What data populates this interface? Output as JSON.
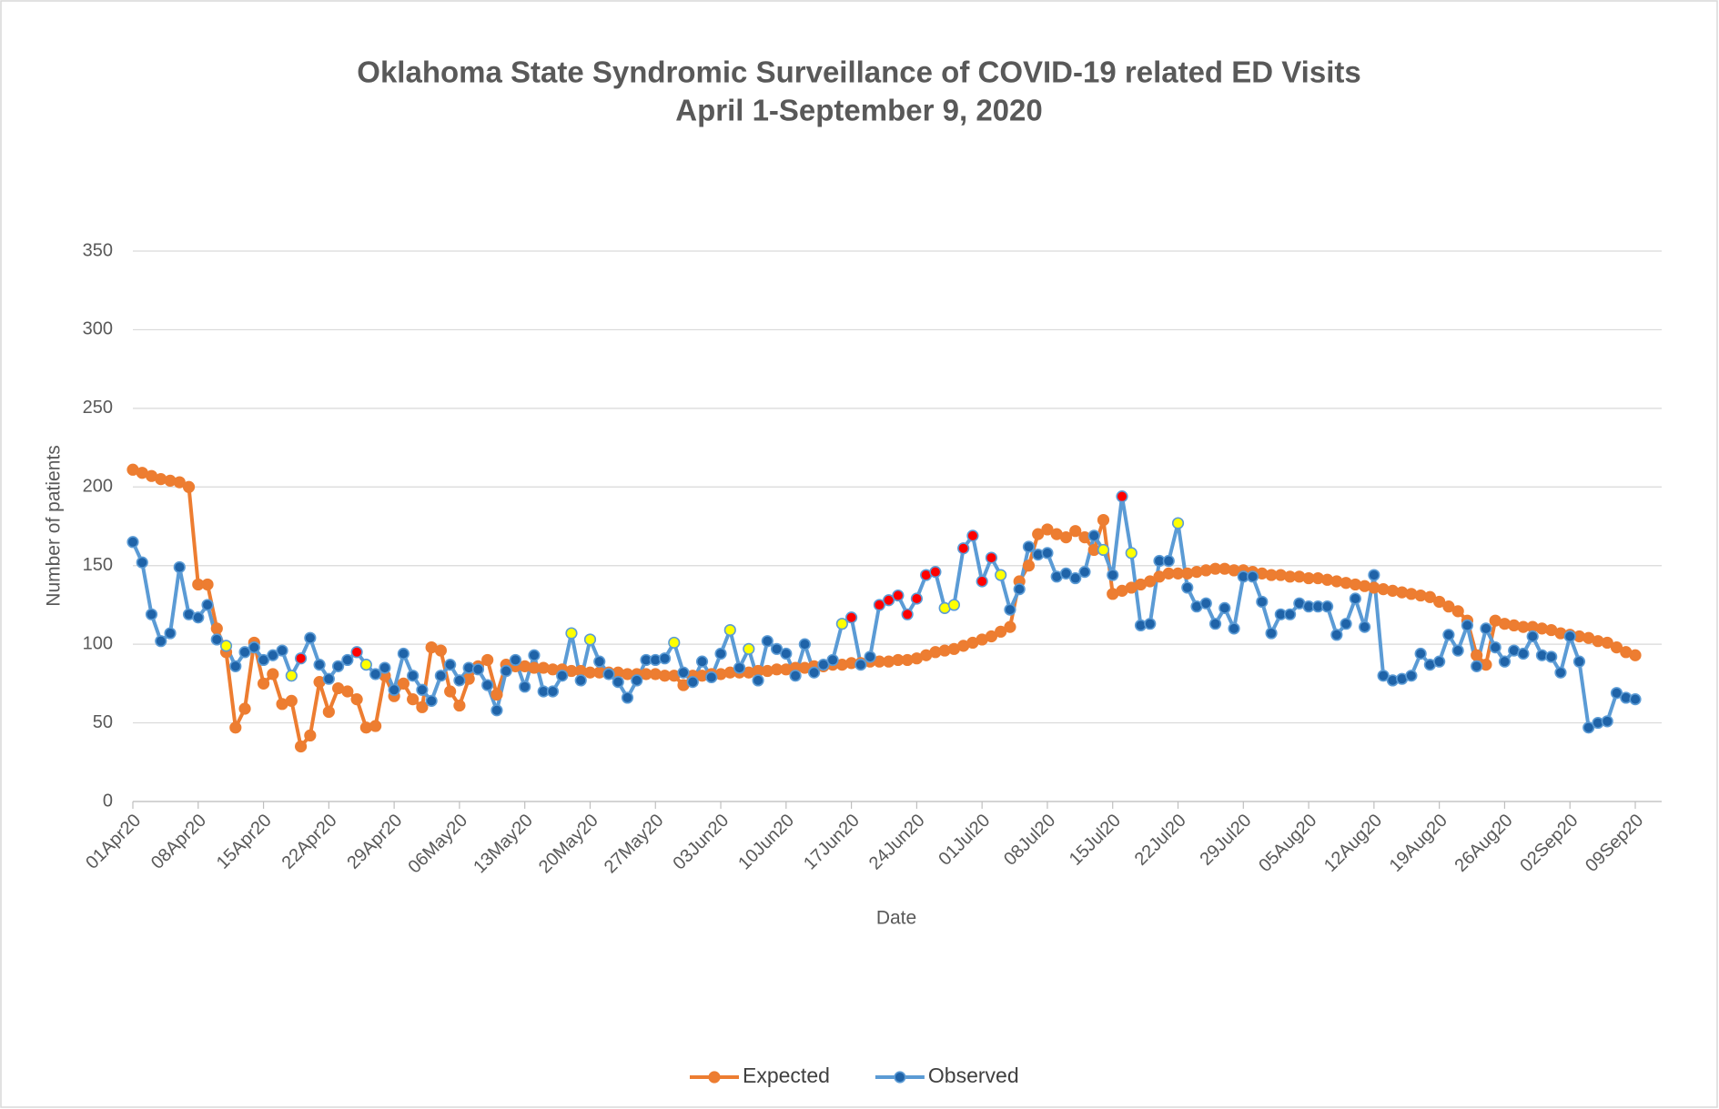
{
  "chart_data": {
    "type": "line",
    "title": "Oklahoma State Syndromic Surveillance of COVID-19 related ED Visits",
    "subtitle": "April 1-September 9, 2020",
    "x_label": "Date",
    "y_label": "Number of patients",
    "ylim": [
      0,
      350
    ],
    "yticks": [
      0,
      50,
      100,
      150,
      200,
      250,
      300,
      350
    ],
    "grid": true,
    "legend": "bottom",
    "categories": [
      "01Apr20",
      null,
      null,
      null,
      null,
      null,
      null,
      "08Apr20",
      null,
      null,
      null,
      null,
      null,
      null,
      "15Apr20",
      null,
      null,
      null,
      null,
      null,
      null,
      "22Apr20",
      null,
      null,
      null,
      null,
      null,
      null,
      "29Apr20",
      null,
      null,
      null,
      null,
      null,
      null,
      "06May20",
      null,
      null,
      null,
      null,
      null,
      null,
      "13May20",
      null,
      null,
      null,
      null,
      null,
      null,
      "20May20",
      null,
      null,
      null,
      null,
      null,
      null,
      "27May20",
      null,
      null,
      null,
      null,
      null,
      null,
      "03Jun20",
      null,
      null,
      null,
      null,
      null,
      null,
      "10Jun20",
      null,
      null,
      null,
      null,
      null,
      null,
      "17Jun20",
      null,
      null,
      null,
      null,
      null,
      null,
      "24Jun20",
      null,
      null,
      null,
      null,
      null,
      null,
      "01Jul20",
      null,
      null,
      null,
      null,
      null,
      null,
      "08Jul20",
      null,
      null,
      null,
      null,
      null,
      null,
      "15Jul20",
      null,
      null,
      null,
      null,
      null,
      null,
      "22Jul20",
      null,
      null,
      null,
      null,
      null,
      null,
      "29Jul20",
      null,
      null,
      null,
      null,
      null,
      null,
      "05Aug20",
      null,
      null,
      null,
      null,
      null,
      null,
      "12Aug20",
      null,
      null,
      null,
      null,
      null,
      null,
      "19Aug20",
      null,
      null,
      null,
      null,
      null,
      null,
      "26Aug20",
      null,
      null,
      null,
      null,
      null,
      null,
      "02Sep20",
      null,
      null,
      null,
      null,
      null,
      null,
      "09Sep20"
    ],
    "series": [
      {
        "name": "Expected",
        "color": "#ed7d31",
        "values": [
          211,
          209,
          207,
          205,
          204,
          203,
          200,
          138,
          138,
          110,
          95,
          47,
          59,
          101,
          75,
          81,
          62,
          64,
          35,
          42,
          76,
          57,
          72,
          70,
          65,
          47,
          48,
          80,
          67,
          75,
          65,
          60,
          98,
          96,
          70,
          61,
          78,
          86,
          90,
          68,
          87,
          86,
          86,
          85,
          85,
          84,
          84,
          83,
          83,
          82,
          82,
          82,
          82,
          81,
          81,
          81,
          81,
          80,
          80,
          74,
          80,
          80,
          81,
          81,
          82,
          82,
          82,
          83,
          83,
          84,
          84,
          85,
          85,
          86,
          86,
          87,
          87,
          88,
          88,
          89,
          89,
          89,
          90,
          90,
          91,
          93,
          95,
          96,
          97,
          99,
          101,
          103,
          105,
          108,
          111,
          140,
          150,
          170,
          173,
          170,
          168,
          172,
          168,
          160,
          179,
          132,
          134,
          136,
          138,
          140,
          143,
          145,
          145,
          145,
          146,
          147,
          148,
          148,
          147,
          147,
          146,
          145,
          144,
          144,
          143,
          143,
          142,
          142,
          141,
          140,
          139,
          138,
          137,
          136,
          135,
          134,
          133,
          132,
          131,
          130,
          127,
          124,
          121,
          115,
          93,
          87,
          115,
          113,
          112,
          111,
          111,
          110,
          109,
          107,
          106,
          105,
          104,
          102,
          101,
          98,
          95,
          93
        ]
      },
      {
        "name": "Observed",
        "color": "#5b9bd5",
        "values": [
          165,
          152,
          119,
          102,
          107,
          149,
          119,
          117,
          125,
          103,
          99,
          86,
          95,
          98,
          90,
          93,
          96,
          80,
          91,
          104,
          87,
          78,
          86,
          90,
          95,
          87,
          81,
          85,
          71,
          94,
          80,
          71,
          64,
          80,
          87,
          77,
          85,
          84,
          74,
          58,
          83,
          90,
          73,
          93,
          70,
          70,
          80,
          107,
          77,
          103,
          89,
          81,
          76,
          66,
          77,
          90,
          90,
          91,
          101,
          82,
          76,
          89,
          79,
          94,
          109,
          85,
          97,
          77,
          102,
          97,
          94,
          80,
          100,
          82,
          87,
          90,
          113,
          117,
          87,
          92,
          125,
          128,
          131,
          119,
          129,
          144,
          146,
          123,
          125,
          161,
          169,
          140,
          155,
          144,
          122,
          135,
          162,
          157,
          158,
          143,
          145,
          142,
          146,
          169,
          160,
          144,
          194,
          158,
          112,
          113,
          153,
          153,
          177,
          136,
          124,
          126,
          113,
          123,
          110,
          143,
          143,
          127,
          107,
          119,
          119,
          126,
          124,
          124,
          124,
          106,
          113,
          129,
          111,
          144,
          80,
          77,
          78,
          80,
          94,
          87,
          89,
          106,
          96,
          112,
          86,
          110,
          98,
          89,
          96,
          94,
          105,
          93,
          92,
          82,
          105,
          89,
          47,
          50,
          51,
          69,
          66,
          65
        ],
        "marker_colors": [
          "#1f63a8",
          "#1f63a8",
          "#1f63a8",
          "#1f63a8",
          "#1f63a8",
          "#1f63a8",
          "#1f63a8",
          "#1f63a8",
          "#1f63a8",
          "#1f63a8",
          "#ffff00",
          "#1f63a8",
          "#1f63a8",
          "#1f63a8",
          "#1f63a8",
          "#1f63a8",
          "#1f63a8",
          "#ffff00",
          "#ff0000",
          "#1f63a8",
          "#1f63a8",
          "#1f63a8",
          "#1f63a8",
          "#1f63a8",
          "#ff0000",
          "#ffff00",
          "#1f63a8",
          "#1f63a8",
          "#1f63a8",
          "#1f63a8",
          "#1f63a8",
          "#1f63a8",
          "#1f63a8",
          "#1f63a8",
          "#1f63a8",
          "#1f63a8",
          "#1f63a8",
          "#1f63a8",
          "#1f63a8",
          "#1f63a8",
          "#1f63a8",
          "#1f63a8",
          "#1f63a8",
          "#1f63a8",
          "#1f63a8",
          "#1f63a8",
          "#1f63a8",
          "#ffff00",
          "#1f63a8",
          "#ffff00",
          "#1f63a8",
          "#1f63a8",
          "#1f63a8",
          "#1f63a8",
          "#1f63a8",
          "#1f63a8",
          "#1f63a8",
          "#1f63a8",
          "#ffff00",
          "#1f63a8",
          "#1f63a8",
          "#1f63a8",
          "#1f63a8",
          "#1f63a8",
          "#ffff00",
          "#1f63a8",
          "#ffff00",
          "#1f63a8",
          "#1f63a8",
          "#1f63a8",
          "#1f63a8",
          "#1f63a8",
          "#1f63a8",
          "#1f63a8",
          "#1f63a8",
          "#1f63a8",
          "#ffff00",
          "#ff0000",
          "#1f63a8",
          "#1f63a8",
          "#ff0000",
          "#ff0000",
          "#ff0000",
          "#ff0000",
          "#ff0000",
          "#ff0000",
          "#ff0000",
          "#ffff00",
          "#ffff00",
          "#ff0000",
          "#ff0000",
          "#ff0000",
          "#ff0000",
          "#ffff00",
          "#1f63a8",
          "#1f63a8",
          "#1f63a8",
          "#1f63a8",
          "#1f63a8",
          "#1f63a8",
          "#1f63a8",
          "#1f63a8",
          "#1f63a8",
          "#1f63a8",
          "#ffff00",
          "#1f63a8",
          "#ff0000",
          "#ffff00",
          "#1f63a8",
          "#1f63a8",
          "#1f63a8",
          "#1f63a8",
          "#ffff00",
          "#1f63a8",
          "#1f63a8",
          "#1f63a8",
          "#1f63a8",
          "#1f63a8",
          "#1f63a8",
          "#1f63a8",
          "#1f63a8",
          "#1f63a8",
          "#1f63a8",
          "#1f63a8",
          "#1f63a8",
          "#1f63a8",
          "#1f63a8",
          "#1f63a8",
          "#1f63a8",
          "#1f63a8",
          "#1f63a8",
          "#1f63a8",
          "#1f63a8",
          "#1f63a8",
          "#1f63a8",
          "#1f63a8",
          "#1f63a8",
          "#1f63a8",
          "#1f63a8",
          "#1f63a8",
          "#1f63a8",
          "#1f63a8",
          "#1f63a8",
          "#1f63a8",
          "#1f63a8",
          "#1f63a8",
          "#1f63a8",
          "#1f63a8",
          "#1f63a8",
          "#1f63a8",
          "#1f63a8",
          "#1f63a8",
          "#1f63a8",
          "#1f63a8",
          "#1f63a8",
          "#1f63a8",
          "#1f63a8",
          "#1f63a8",
          "#1f63a8",
          "#1f63a8",
          "#1f63a8",
          "#1f63a8"
        ]
      }
    ]
  }
}
